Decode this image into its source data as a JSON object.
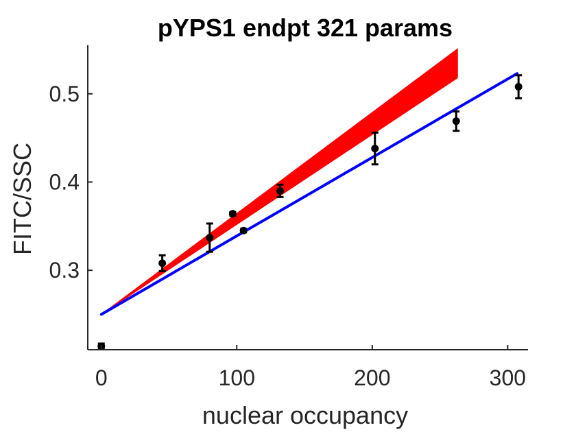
{
  "chart_data": {
    "type": "line",
    "title": "pYPS1 endpt 321 params",
    "xlabel": "nuclear occupancy",
    "ylabel": "FITC/SSC",
    "xlim": [
      -10,
      315
    ],
    "ylim": [
      0.21,
      0.555
    ],
    "xticks": [
      0,
      100,
      200,
      300
    ],
    "yticks": [
      0.3,
      0.4,
      0.5
    ],
    "xtick_labels": [
      "0",
      "100",
      "200",
      "300"
    ],
    "ytick_labels": [
      "0.3",
      "0.4",
      "0.5"
    ],
    "grid": false,
    "legend": "none",
    "band": {
      "color": "#ff0000",
      "x": [
        0,
        263
      ],
      "lower": [
        0.25,
        0.518
      ],
      "upper": [
        0.25,
        0.551
      ]
    },
    "fit_line": {
      "color": "#0000ff",
      "x": [
        0,
        307
      ],
      "y": [
        0.25,
        0.523
      ]
    },
    "points": {
      "color": "#000000",
      "x": [
        0,
        45,
        80,
        97,
        105,
        132,
        202,
        262,
        308
      ],
      "y": [
        0.214,
        0.308,
        0.337,
        0.364,
        0.345,
        0.39,
        0.438,
        0.469,
        0.508
      ],
      "err": [
        0.003,
        0.009,
        0.016,
        0.002,
        0.002,
        0.007,
        0.018,
        0.011,
        0.013
      ]
    }
  }
}
